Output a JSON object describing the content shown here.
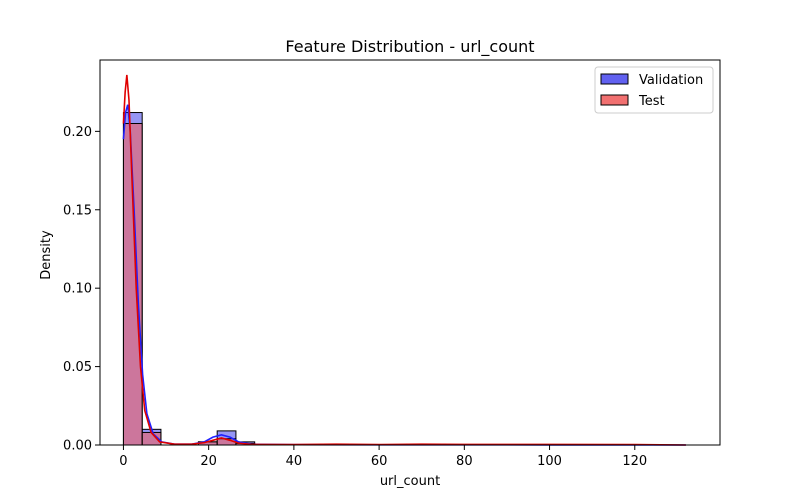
{
  "chart_data": {
    "type": "histogram",
    "title": "Feature Distribution - url_count",
    "xlabel": "url_count",
    "ylabel": "Density",
    "xlim": [
      -5.5,
      140
    ],
    "ylim": [
      0,
      0.2455
    ],
    "xticks": [
      0,
      20,
      40,
      60,
      80,
      100,
      120
    ],
    "yticks": [
      0.0,
      0.05,
      0.1,
      0.15,
      0.2
    ],
    "ytick_labels": [
      "0.00",
      "0.05",
      "0.10",
      "0.15",
      "0.20"
    ],
    "grid": false,
    "legend_position": "top-right",
    "bin_width": 4.4,
    "series": [
      {
        "name": "Validation",
        "color": "#0000ff",
        "fill_color": "#5050ee",
        "line_color": "#2020ff",
        "bins": [
          {
            "start": 0,
            "value": 0.212
          },
          {
            "start": 4.4,
            "value": 0.01
          },
          {
            "start": 17.6,
            "value": 0.002
          },
          {
            "start": 22.0,
            "value": 0.009
          },
          {
            "start": 26.4,
            "value": 0.002
          }
        ],
        "kde": [
          [
            0.0,
            0.195
          ],
          [
            0.5,
            0.212
          ],
          [
            1.0,
            0.217
          ],
          [
            1.6,
            0.2
          ],
          [
            2.5,
            0.15
          ],
          [
            3.5,
            0.09
          ],
          [
            4.5,
            0.045
          ],
          [
            5.5,
            0.02
          ],
          [
            7.0,
            0.007
          ],
          [
            9.0,
            0.002
          ],
          [
            12.0,
            0.0005
          ],
          [
            16.0,
            0.0005
          ],
          [
            19.0,
            0.002
          ],
          [
            21.0,
            0.005
          ],
          [
            23.0,
            0.0065
          ],
          [
            25.0,
            0.005
          ],
          [
            27.0,
            0.002
          ],
          [
            30.0,
            0.0005
          ],
          [
            40.0,
            0.0002
          ],
          [
            60.0,
            0.0001
          ],
          [
            80.0,
            0.0001
          ],
          [
            100.0,
            5e-05
          ],
          [
            120.0,
            5e-05
          ],
          [
            132.0,
            0.0
          ]
        ]
      },
      {
        "name": "Test",
        "color": "#ff0000",
        "fill_color": "#f06060",
        "line_color": "#e00000",
        "bins": [
          {
            "start": 0,
            "value": 0.205
          },
          {
            "start": 4.4,
            "value": 0.008
          },
          {
            "start": 17.6,
            "value": 0.002
          },
          {
            "start": 22.0,
            "value": 0.004
          },
          {
            "start": 26.4,
            "value": 0.001
          }
        ],
        "kde": [
          [
            0.0,
            0.205
          ],
          [
            0.4,
            0.225
          ],
          [
            0.8,
            0.236
          ],
          [
            1.3,
            0.22
          ],
          [
            2.0,
            0.17
          ],
          [
            3.0,
            0.1
          ],
          [
            4.0,
            0.05
          ],
          [
            5.0,
            0.022
          ],
          [
            6.5,
            0.008
          ],
          [
            8.5,
            0.002
          ],
          [
            12.0,
            0.0005
          ],
          [
            16.0,
            0.0005
          ],
          [
            19.0,
            0.0015
          ],
          [
            21.0,
            0.003
          ],
          [
            23.0,
            0.0045
          ],
          [
            25.0,
            0.003
          ],
          [
            27.0,
            0.0012
          ],
          [
            30.0,
            0.0004
          ],
          [
            40.0,
            0.0003
          ],
          [
            50.0,
            0.0005
          ],
          [
            60.0,
            0.0003
          ],
          [
            70.0,
            0.0005
          ],
          [
            80.0,
            0.0004
          ],
          [
            100.0,
            0.0004
          ],
          [
            120.0,
            0.0003
          ],
          [
            132.0,
            0.0
          ]
        ]
      }
    ]
  }
}
